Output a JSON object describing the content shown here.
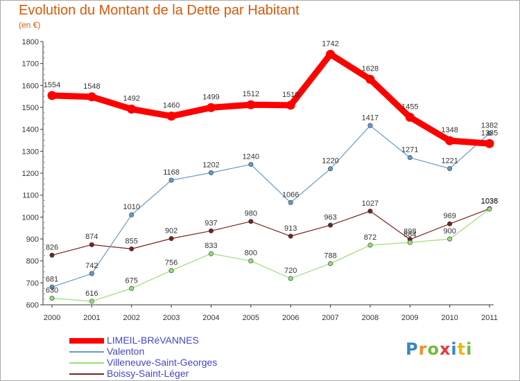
{
  "title": "Evolution du Montant de la Dette par Habitant",
  "unit_label": "(en €)",
  "logo": {
    "text": "Proxiti",
    "letters": [
      {
        "ch": "P",
        "color": "#3a86c8"
      },
      {
        "ch": "r",
        "color": "#f28c28"
      },
      {
        "ch": "o",
        "color": "#6cbf3a"
      },
      {
        "ch": "x",
        "color": "#e03a3a"
      },
      {
        "ch": "i",
        "color": "#3a86c8"
      },
      {
        "ch": "t",
        "color": "#f2b705"
      },
      {
        "ch": "i",
        "color": "#6cbf3a"
      }
    ]
  },
  "chart_data": {
    "type": "line",
    "title": "Evolution du Montant de la Dette par Habitant",
    "ylabel": "(en €)",
    "xlabel": "",
    "ylim": [
      600,
      1800
    ],
    "yticks": [
      600,
      700,
      800,
      900,
      1000,
      1100,
      1200,
      1300,
      1400,
      1500,
      1600,
      1700,
      1800
    ],
    "grid": false,
    "legend": "bottom-left",
    "x": [
      "2000",
      "2001",
      "2002",
      "2003",
      "2004",
      "2005",
      "2006",
      "2007",
      "2008",
      "2009",
      "2010",
      "2011"
    ],
    "series": [
      {
        "name": "LIMEIL-BRéVANNES",
        "color": "#ff0000",
        "emphasis": true,
        "values": [
          1554,
          1548,
          1492,
          1460,
          1499,
          1512,
          1510,
          1742,
          1628,
          1455,
          1348,
          1335
        ]
      },
      {
        "name": "Valenton",
        "color": "#6699cc",
        "values": [
          681,
          742,
          1010,
          1168,
          1202,
          1240,
          1066,
          1220,
          1417,
          1271,
          1221,
          1382
        ]
      },
      {
        "name": "Villeneuve-Saint-Georges",
        "color": "#99dd77",
        "values": [
          630,
          616,
          675,
          756,
          833,
          800,
          720,
          788,
          872,
          884,
          900,
          1036
        ]
      },
      {
        "name": "Boissy-Saint-Léger",
        "color": "#772222",
        "values": [
          826,
          874,
          855,
          902,
          937,
          980,
          913,
          963,
          1027,
          898,
          969,
          1038
        ]
      }
    ]
  }
}
